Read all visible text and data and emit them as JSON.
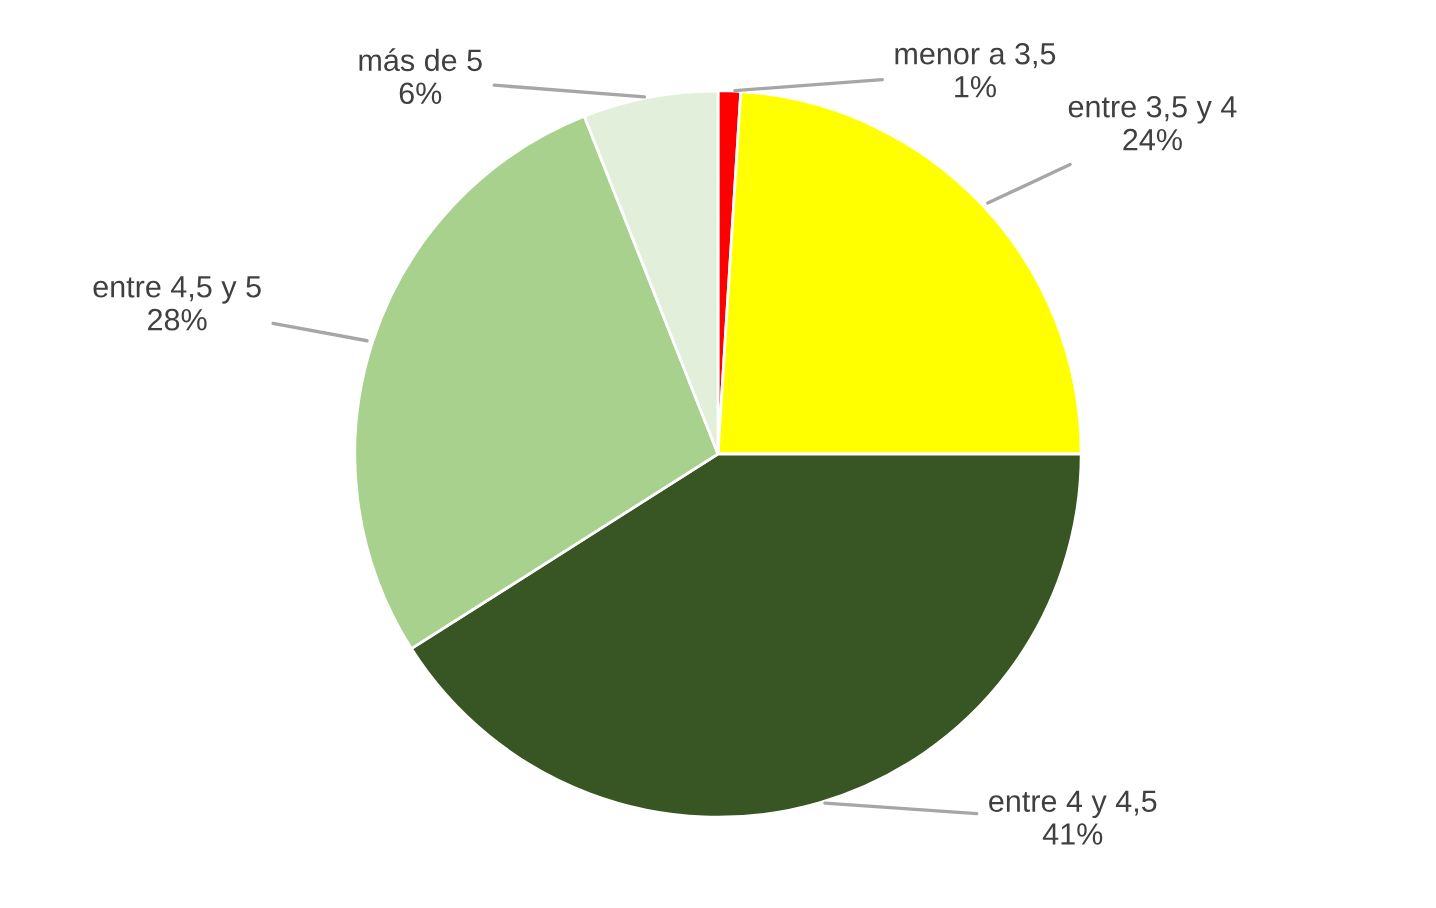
{
  "chart_data": {
    "type": "pie",
    "categories": [
      "menor a 3,5",
      "entre 3,5 y 4",
      "entre 4 y 4,5",
      "entre 4,5 y 5",
      "más de 5"
    ],
    "values": [
      1,
      24,
      41,
      28,
      6
    ],
    "value_labels": [
      "1%",
      "24%",
      "41%",
      "28%",
      "6%"
    ],
    "colors": [
      "#ff0000",
      "#ffff00",
      "#375623",
      "#a9d18e",
      "#e2efda"
    ],
    "legend": false
  }
}
